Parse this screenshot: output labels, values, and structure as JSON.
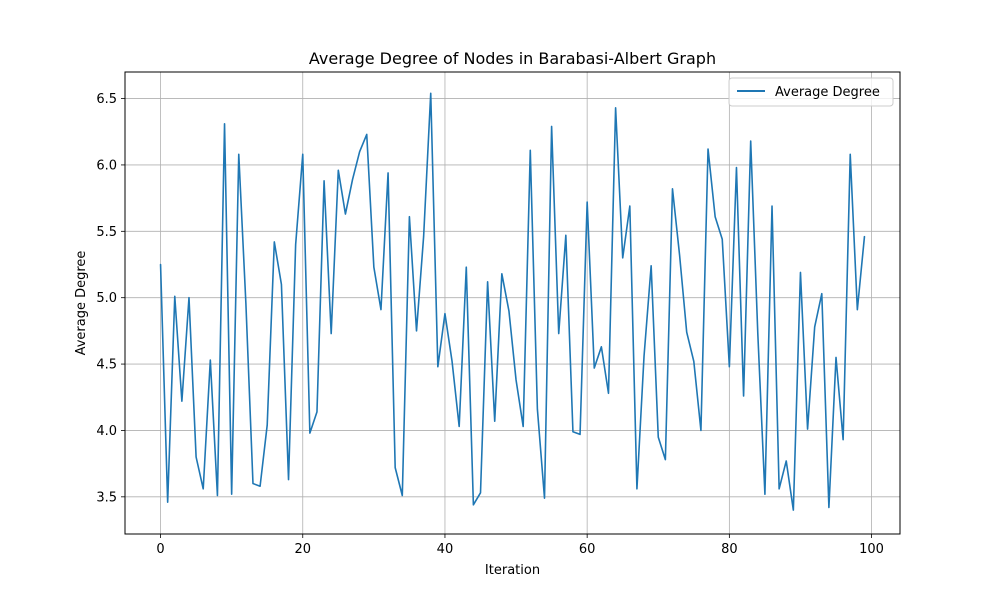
{
  "chart_data": {
    "type": "line",
    "title": "Average Degree of Nodes in Barabasi-Albert Graph",
    "xlabel": "Iteration",
    "ylabel": "Average Degree",
    "xlim": [
      -5,
      104
    ],
    "ylim": [
      3.22,
      6.7
    ],
    "xticks": [
      0,
      20,
      40,
      60,
      80,
      100
    ],
    "yticks": [
      3.5,
      4.0,
      4.5,
      5.0,
      5.5,
      6.0,
      6.5
    ],
    "xtick_labels": [
      "0",
      "20",
      "40",
      "60",
      "80",
      "100"
    ],
    "ytick_labels": [
      "3.5",
      "4.0",
      "4.5",
      "5.0",
      "5.5",
      "6.0",
      "6.5"
    ],
    "grid": true,
    "legend_position": "top-right",
    "series": [
      {
        "name": "Average Degree",
        "color": "#1f77b4",
        "x": [
          0,
          1,
          2,
          3,
          4,
          5,
          6,
          7,
          8,
          9,
          10,
          11,
          12,
          13,
          14,
          15,
          16,
          17,
          18,
          19,
          20,
          21,
          22,
          23,
          24,
          25,
          26,
          27,
          28,
          29,
          30,
          31,
          32,
          33,
          34,
          35,
          36,
          37,
          38,
          39,
          40,
          41,
          42,
          43,
          44,
          45,
          46,
          47,
          48,
          49,
          50,
          51,
          52,
          53,
          54,
          55,
          56,
          57,
          58,
          59,
          60,
          61,
          62,
          63,
          64,
          65,
          66,
          67,
          68,
          69,
          70,
          71,
          72,
          73,
          74,
          75,
          76,
          77,
          78,
          79,
          80,
          81,
          82,
          83,
          84,
          85,
          86,
          87,
          88,
          89,
          90,
          91,
          92,
          93,
          94,
          95,
          96,
          97,
          98,
          99
        ],
        "values": [
          5.25,
          3.46,
          5.01,
          4.22,
          5.0,
          3.8,
          3.56,
          4.53,
          3.51,
          6.31,
          3.52,
          6.08,
          4.96,
          3.6,
          3.58,
          4.04,
          5.42,
          5.1,
          3.63,
          5.4,
          6.08,
          3.98,
          4.14,
          5.88,
          4.73,
          5.96,
          5.63,
          5.89,
          6.1,
          6.23,
          5.23,
          4.91,
          5.94,
          3.72,
          3.51,
          5.61,
          4.75,
          5.46,
          6.54,
          4.48,
          4.88,
          4.52,
          4.03,
          5.23,
          3.44,
          3.53,
          5.12,
          4.07,
          5.18,
          4.9,
          4.38,
          4.03,
          6.11,
          4.16,
          3.49,
          6.29,
          4.73,
          5.47,
          3.99,
          3.97,
          5.72,
          4.47,
          4.63,
          4.28,
          6.43,
          5.3,
          5.69,
          3.56,
          4.56,
          5.24,
          3.95,
          3.78,
          5.82,
          5.32,
          4.74,
          4.52,
          4.0,
          6.12,
          5.61,
          5.44,
          4.48,
          5.98,
          4.26,
          6.18,
          4.73,
          3.52,
          5.69,
          3.56,
          3.77,
          3.4,
          5.19,
          4.01,
          4.78,
          5.03,
          3.42,
          4.55,
          3.93,
          6.08,
          4.91,
          5.46
        ]
      }
    ]
  }
}
